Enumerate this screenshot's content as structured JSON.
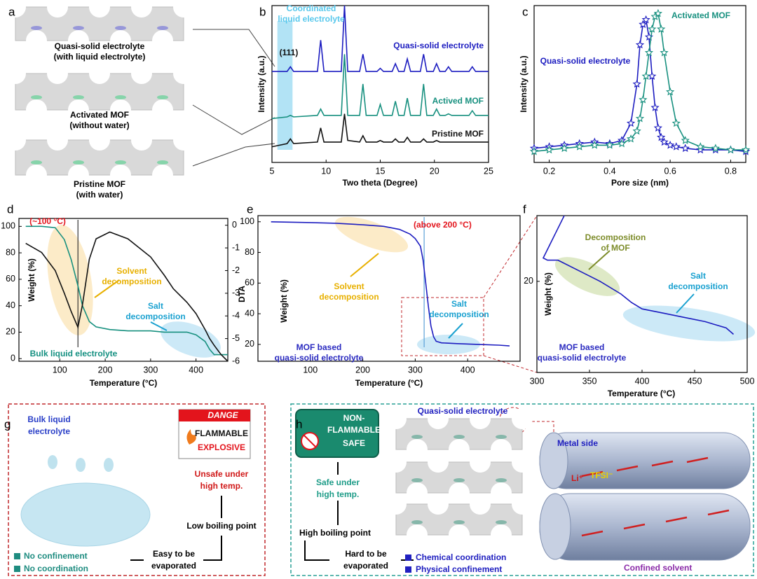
{
  "panel_labels": [
    "a",
    "b",
    "c",
    "d",
    "e",
    "f",
    "g",
    "h"
  ],
  "panel_a": {
    "items": [
      [
        "Quasi-solid electrolyte",
        "(with liquid electrolyte)"
      ],
      [
        "Activated MOF",
        "(without water)"
      ],
      [
        "Pristine MOF",
        "(with water)"
      ]
    ]
  },
  "chart_data": [
    {
      "type": "line",
      "x_label": "Two theta (Degree)",
      "y_label": "Intensity (a.u.)",
      "xlim": [
        5,
        25
      ],
      "xticks": [
        5,
        10,
        15,
        20,
        25
      ],
      "ylim": [
        0,
        100
      ],
      "highlight": [
        5.5,
        6.9
      ],
      "x": [
        5,
        6.4,
        6.7,
        7.0,
        9.2,
        9.5,
        9.8,
        11.4,
        11.7,
        12.0,
        13.1,
        13.4,
        13.7,
        14.7,
        15.0,
        15.3,
        16.1,
        16.4,
        16.7,
        17.2,
        17.5,
        17.8,
        18.7,
        19.0,
        19.3,
        19.9,
        20.2,
        20.5,
        21.0,
        21.3,
        21.6,
        23.2,
        23.5,
        23.8,
        25
      ],
      "series": [
        {
          "name": "Quasi-solid electrolyte",
          "color": "#1c1cc0",
          "values": [
            58,
            58,
            61,
            58,
            58,
            78,
            58,
            58,
            100,
            58,
            58,
            69,
            58,
            58,
            60,
            58,
            58,
            63,
            58,
            58,
            66,
            58,
            58,
            69,
            58,
            58,
            63,
            58,
            58,
            61,
            58,
            58,
            61,
            58,
            58
          ]
        },
        {
          "name": "Actived MOF",
          "color": "#17907f",
          "values": [
            28,
            29,
            30,
            29,
            30,
            34,
            30,
            30,
            69,
            30,
            30,
            50,
            30,
            30,
            37,
            30,
            30,
            39,
            30,
            30,
            41,
            30,
            30,
            50,
            30,
            30,
            34,
            30,
            30,
            31,
            30,
            30,
            33,
            30,
            30
          ]
        },
        {
          "name": "Pristine MOF",
          "color": "#111111",
          "values": [
            10,
            12,
            15,
            12,
            13,
            22,
            13,
            13,
            31,
            14,
            13,
            17,
            13,
            13,
            14,
            13,
            13,
            15,
            13,
            13,
            16,
            13,
            13,
            15,
            13,
            13,
            14,
            13,
            13,
            13,
            13,
            13,
            13,
            13,
            13
          ]
        }
      ],
      "annotations": [
        {
          "text": [
            "Coordinated",
            "liquid electrolyte"
          ]
        },
        {
          "text": [
            "(111)"
          ]
        }
      ]
    },
    {
      "type": "line",
      "markers": "star",
      "x_label": "Pore size (nm)",
      "y_label": "Intensity (a.u.)",
      "xlim": [
        0.15,
        0.85
      ],
      "xticks": [
        0.2,
        0.4,
        0.6,
        0.8
      ],
      "ylim": [
        0,
        100
      ],
      "x": [
        0.15,
        0.2,
        0.25,
        0.3,
        0.35,
        0.4,
        0.44,
        0.47,
        0.49,
        0.5,
        0.51,
        0.52,
        0.53,
        0.54,
        0.55,
        0.56,
        0.57,
        0.58,
        0.6,
        0.62,
        0.65,
        0.7,
        0.75,
        0.8,
        0.85
      ],
      "series": [
        {
          "name": "Quasi-solid electrolyte",
          "color": "#1c1cc0",
          "values": [
            9,
            10,
            11,
            12,
            13,
            12,
            14,
            25,
            50,
            75,
            88,
            91,
            80,
            55,
            35,
            22,
            16,
            13,
            11,
            10,
            9,
            8,
            8,
            8,
            7
          ]
        },
        {
          "name": "Activated MOF",
          "color": "#17907f",
          "values": [
            7,
            8,
            9,
            10,
            11,
            11,
            12,
            15,
            20,
            28,
            40,
            55,
            70,
            85,
            93,
            95,
            85,
            70,
            45,
            25,
            14,
            10,
            9,
            8,
            8
          ]
        }
      ],
      "annotations": []
    },
    {
      "type": "line",
      "x_label": "Temperature (°C)",
      "y_label": "Weight (%)",
      "y2_label": "DTA",
      "xlim": [
        10,
        470
      ],
      "xticks": [
        100,
        200,
        300,
        400
      ],
      "ylim": [
        -2,
        106
      ],
      "yticks": [
        0,
        20,
        40,
        60,
        80,
        100
      ],
      "y2lim": [
        -6,
        0.3
      ],
      "y2ticks": [
        0,
        -1,
        -2,
        -3,
        -4,
        -5,
        -6
      ],
      "vline_x": 140,
      "x": [
        25,
        60,
        90,
        110,
        125,
        140,
        150,
        165,
        180,
        210,
        250,
        300,
        330,
        350,
        380,
        400,
        420,
        430,
        440,
        455,
        470
      ],
      "series": [
        {
          "color": "#17907f",
          "values": [
            100,
            100,
            99,
            90,
            75,
            55,
            40,
            28,
            24,
            22,
            21,
            21,
            20,
            20,
            20,
            18,
            13,
            7,
            3,
            3,
            3
          ]
        },
        {
          "color": "#111111",
          "axis": "y2",
          "values": [
            -0.8,
            -1.2,
            -2.0,
            -3.0,
            -3.8,
            -4.5,
            -3.5,
            -1.5,
            -0.6,
            -0.3,
            -0.6,
            -1.4,
            -2.2,
            -2.8,
            -3.4,
            -3.9,
            -4.6,
            -5.0,
            -5.3,
            -5.7,
            -6.0
          ]
        }
      ],
      "annotations": [
        {
          "text": [
            "(~100 °C)"
          ]
        },
        {
          "text": [
            "Solvent",
            "decomposition"
          ]
        },
        {
          "text": [
            "Salt",
            "decomposition"
          ]
        },
        {
          "text": [
            "Bulk liquid electrolyte"
          ]
        }
      ]
    },
    {
      "type": "line",
      "x_label": "Temperature (°C)",
      "y_label": "Weight (%)",
      "xlim": [
        0,
        500
      ],
      "xticks": [
        100,
        200,
        300,
        400
      ],
      "ylim": [
        9,
        104
      ],
      "yticks": [
        20,
        40,
        60,
        80,
        100
      ],
      "vline_x": 317,
      "x": [
        25,
        100,
        150,
        200,
        240,
        270,
        290,
        300,
        310,
        315,
        320,
        325,
        330,
        335,
        340,
        350,
        380,
        420,
        460,
        480
      ],
      "series": [
        {
          "color": "#1c1cc0",
          "values": [
            100,
            99.5,
            99,
            98,
            97,
            95,
            92,
            89,
            84,
            75,
            60,
            45,
            32,
            25,
            22,
            21,
            20.5,
            20,
            19.5,
            19
          ]
        }
      ],
      "annotations": [
        {
          "text": [
            "(above 200 °C)"
          ]
        },
        {
          "text": [
            "Solvent",
            "decomposition"
          ]
        },
        {
          "text": [
            "Salt",
            "decomposition"
          ]
        },
        {
          "text": [
            "MOF based",
            "quasi-solid electrolyte"
          ]
        }
      ]
    },
    {
      "type": "line",
      "x_label": "Temperature (°C)",
      "y_label": "Weight (%)",
      "xlim": [
        300,
        500
      ],
      "xticks": [
        300,
        350,
        400,
        450,
        500
      ],
      "ylim": [
        15.7,
        23.1
      ],
      "yticks": [
        20
      ],
      "x": [
        326,
        318,
        312,
        308,
        306,
        310,
        320,
        340,
        360,
        380,
        390,
        400,
        420,
        440,
        460,
        480,
        487
      ],
      "series": [
        {
          "color": "#1c1cc0",
          "values": [
            23.1,
            22.3,
            21.7,
            21.3,
            21.1,
            21.0,
            21.0,
            20.5,
            20.0,
            19.4,
            19.0,
            18.7,
            18.5,
            18.3,
            18.1,
            17.8,
            17.5
          ]
        }
      ],
      "annotations": [
        {
          "text": [
            "Decomposition",
            "of MOF"
          ]
        },
        {
          "text": [
            "Salt",
            "decomposition"
          ]
        },
        {
          "text": [
            "MOF based",
            "quasi-solid electrolyte"
          ]
        }
      ]
    }
  ],
  "panel_g": {
    "title": [
      "Bulk liquid",
      "electrolyte"
    ],
    "sign": [
      "DANGE",
      "FLAMMABLE",
      "EXPLOSIVE"
    ],
    "flow": [
      [
        "Unsafe under",
        "high temp."
      ],
      [
        "Low boiling point"
      ],
      [
        "Easy to be",
        "evaporated"
      ]
    ],
    "legend": [
      "No confinement",
      "No coordination"
    ]
  },
  "panel_h": {
    "sign": [
      "NON-",
      "FLAMMABLE",
      "SAFE"
    ],
    "flow": [
      [
        "Safe under",
        "high temp."
      ],
      [
        "High boiling point"
      ],
      [
        "Hard to be",
        "evaporated"
      ]
    ],
    "legend": [
      "Chemical coordination",
      "Physical confinement"
    ],
    "labels": [
      "Quasi-solid electrolyte",
      "Metal side",
      "Li⁺",
      "TFSI⁻",
      "Confined solvent"
    ]
  }
}
